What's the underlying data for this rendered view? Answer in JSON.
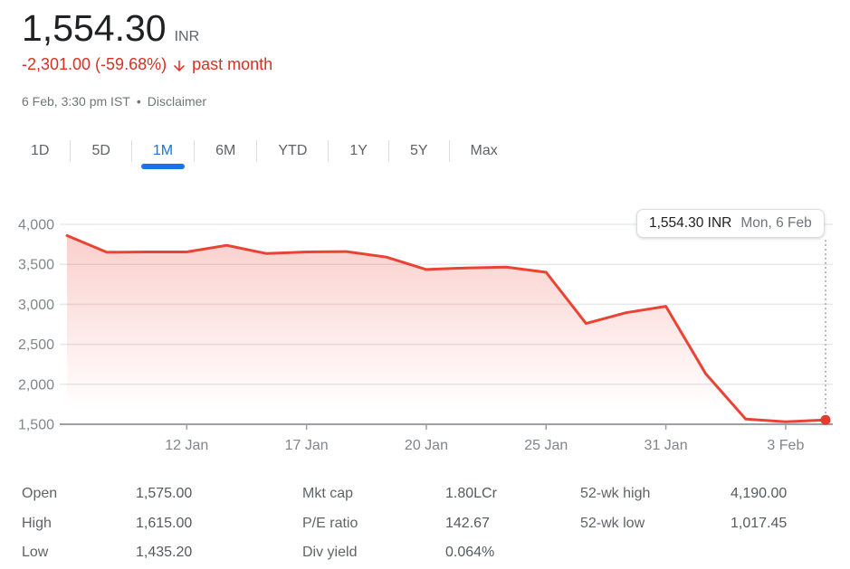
{
  "header": {
    "price": "1,554.30",
    "currency": "INR",
    "change_text": "-2,301.00 (-59.68%)",
    "change_icon": "arrow-down-icon",
    "change_period": "past month",
    "change_color": "#d93025",
    "timestamp": "6 Feb, 3:30 pm IST",
    "separator": "•",
    "disclaimer_label": "Disclaimer"
  },
  "tabs": {
    "active_color": "#1a73e8",
    "items": [
      {
        "label": "1D",
        "active": false
      },
      {
        "label": "5D",
        "active": false
      },
      {
        "label": "1M",
        "active": true
      },
      {
        "label": "6M",
        "active": false
      },
      {
        "label": "YTD",
        "active": false
      },
      {
        "label": "1Y",
        "active": false
      },
      {
        "label": "5Y",
        "active": false
      },
      {
        "label": "Max",
        "active": false
      }
    ]
  },
  "chart_data": {
    "type": "area",
    "title": "1M price history",
    "unit": "INR",
    "line_color": "#ea4335",
    "marker_color": "#e33b2e",
    "grid": "horizontal",
    "ylim": [
      1500,
      4000
    ],
    "x": [
      "9 Jan",
      "10 Jan",
      "11 Jan",
      "12 Jan",
      "13 Jan",
      "16 Jan",
      "17 Jan",
      "18 Jan",
      "19 Jan",
      "20 Jan",
      "23 Jan",
      "24 Jan",
      "25 Jan",
      "27 Jan",
      "30 Jan",
      "31 Jan",
      "1 Feb",
      "2 Feb",
      "3 Feb",
      "6 Feb"
    ],
    "values": [
      3860,
      3650,
      3655,
      3655,
      3737,
      3635,
      3655,
      3660,
      3590,
      3435,
      3455,
      3465,
      3400,
      2760,
      2895,
      2975,
      2130,
      1565,
      1530,
      1554.3
    ],
    "yticks": [
      {
        "value": 4000,
        "label": "4,000"
      },
      {
        "value": 3500,
        "label": "3,500"
      },
      {
        "value": 3000,
        "label": "3,000"
      },
      {
        "value": 2500,
        "label": "2,500"
      },
      {
        "value": 2000,
        "label": "2,000"
      },
      {
        "value": 1500,
        "label": "1,500"
      }
    ],
    "xticks": [
      {
        "index": 3,
        "label": "12 Jan"
      },
      {
        "index": 6,
        "label": "17 Jan"
      },
      {
        "index": 9,
        "label": "20 Jan"
      },
      {
        "index": 12,
        "label": "25 Jan"
      },
      {
        "index": 15,
        "label": "31 Jan"
      },
      {
        "index": 18,
        "label": "3 Feb"
      }
    ],
    "tooltip": {
      "price": "1,554.30 INR",
      "date": "Mon, 6 Feb"
    },
    "endpoint": {
      "value": 1554.3,
      "marker": true
    }
  },
  "stats": {
    "columns": [
      {
        "rows": [
          {
            "label": "Open",
            "value": "1,575.00"
          },
          {
            "label": "High",
            "value": "1,615.00"
          },
          {
            "label": "Low",
            "value": "1,435.20"
          }
        ]
      },
      {
        "rows": [
          {
            "label": "Mkt cap",
            "value": "1.80LCr"
          },
          {
            "label": "P/E ratio",
            "value": "142.67"
          },
          {
            "label": "Div yield",
            "value": "0.064%"
          }
        ]
      },
      {
        "rows": [
          {
            "label": "52-wk high",
            "value": "4,190.00"
          },
          {
            "label": "52-wk low",
            "value": "1,017.45"
          }
        ]
      }
    ]
  }
}
